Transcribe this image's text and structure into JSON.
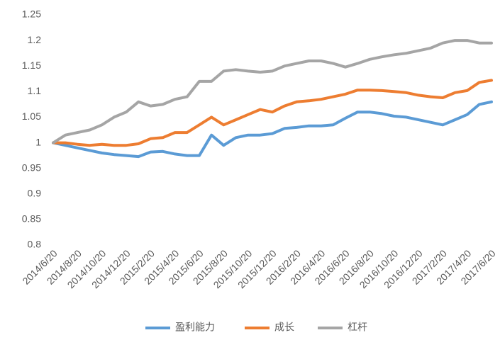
{
  "chart_data": {
    "type": "line",
    "categories": [
      "2014/6/20",
      null,
      "2014/8/20",
      null,
      "2014/10/20",
      null,
      "2014/12/20",
      null,
      "2015/2/20",
      null,
      "2015/4/20",
      null,
      "2015/6/20",
      null,
      "2015/8/20",
      null,
      "2015/10/20",
      null,
      "2015/12/20",
      null,
      "2016/2/20",
      null,
      "2016/4/20",
      null,
      "2016/6/20",
      null,
      "2016/8/20",
      null,
      "2016/10/20",
      null,
      "2016/12/20",
      null,
      "2017/2/20",
      null,
      "2017/4/20",
      null,
      "2017/6/20"
    ],
    "series": [
      {
        "name": "盈利能力",
        "color": "#5b9bd5",
        "values": [
          1.0,
          0.995,
          0.99,
          0.985,
          0.98,
          0.977,
          0.975,
          0.973,
          0.982,
          0.983,
          0.978,
          0.975,
          0.975,
          1.015,
          0.995,
          1.01,
          1.015,
          1.015,
          1.018,
          1.028,
          1.03,
          1.033,
          1.033,
          1.035,
          1.048,
          1.06,
          1.06,
          1.057,
          1.052,
          1.05,
          1.045,
          1.04,
          1.035,
          1.045,
          1.055,
          1.075,
          1.08
        ]
      },
      {
        "name": "成长",
        "color": "#ed7d31",
        "values": [
          1.0,
          1.0,
          0.997,
          0.995,
          0.997,
          0.995,
          0.995,
          0.998,
          1.008,
          1.01,
          1.02,
          1.02,
          1.035,
          1.05,
          1.035,
          1.045,
          1.055,
          1.065,
          1.06,
          1.072,
          1.08,
          1.082,
          1.085,
          1.09,
          1.095,
          1.103,
          1.103,
          1.102,
          1.1,
          1.098,
          1.093,
          1.09,
          1.088,
          1.098,
          1.102,
          1.118,
          1.122
        ]
      },
      {
        "name": "杠杆",
        "color": "#a5a5a5",
        "values": [
          1.0,
          1.015,
          1.02,
          1.025,
          1.035,
          1.05,
          1.06,
          1.08,
          1.072,
          1.075,
          1.085,
          1.09,
          1.12,
          1.12,
          1.14,
          1.143,
          1.14,
          1.138,
          1.14,
          1.15,
          1.155,
          1.16,
          1.16,
          1.155,
          1.148,
          1.155,
          1.163,
          1.168,
          1.172,
          1.175,
          1.18,
          1.185,
          1.195,
          1.2,
          1.2,
          1.195,
          1.195
        ]
      }
    ],
    "ylim": [
      0.8,
      1.25
    ],
    "yticks": [
      0.8,
      0.85,
      0.9,
      0.95,
      1,
      1.05,
      1.1,
      1.15,
      1.2,
      1.25
    ],
    "grid": false,
    "legend": "bottom"
  }
}
